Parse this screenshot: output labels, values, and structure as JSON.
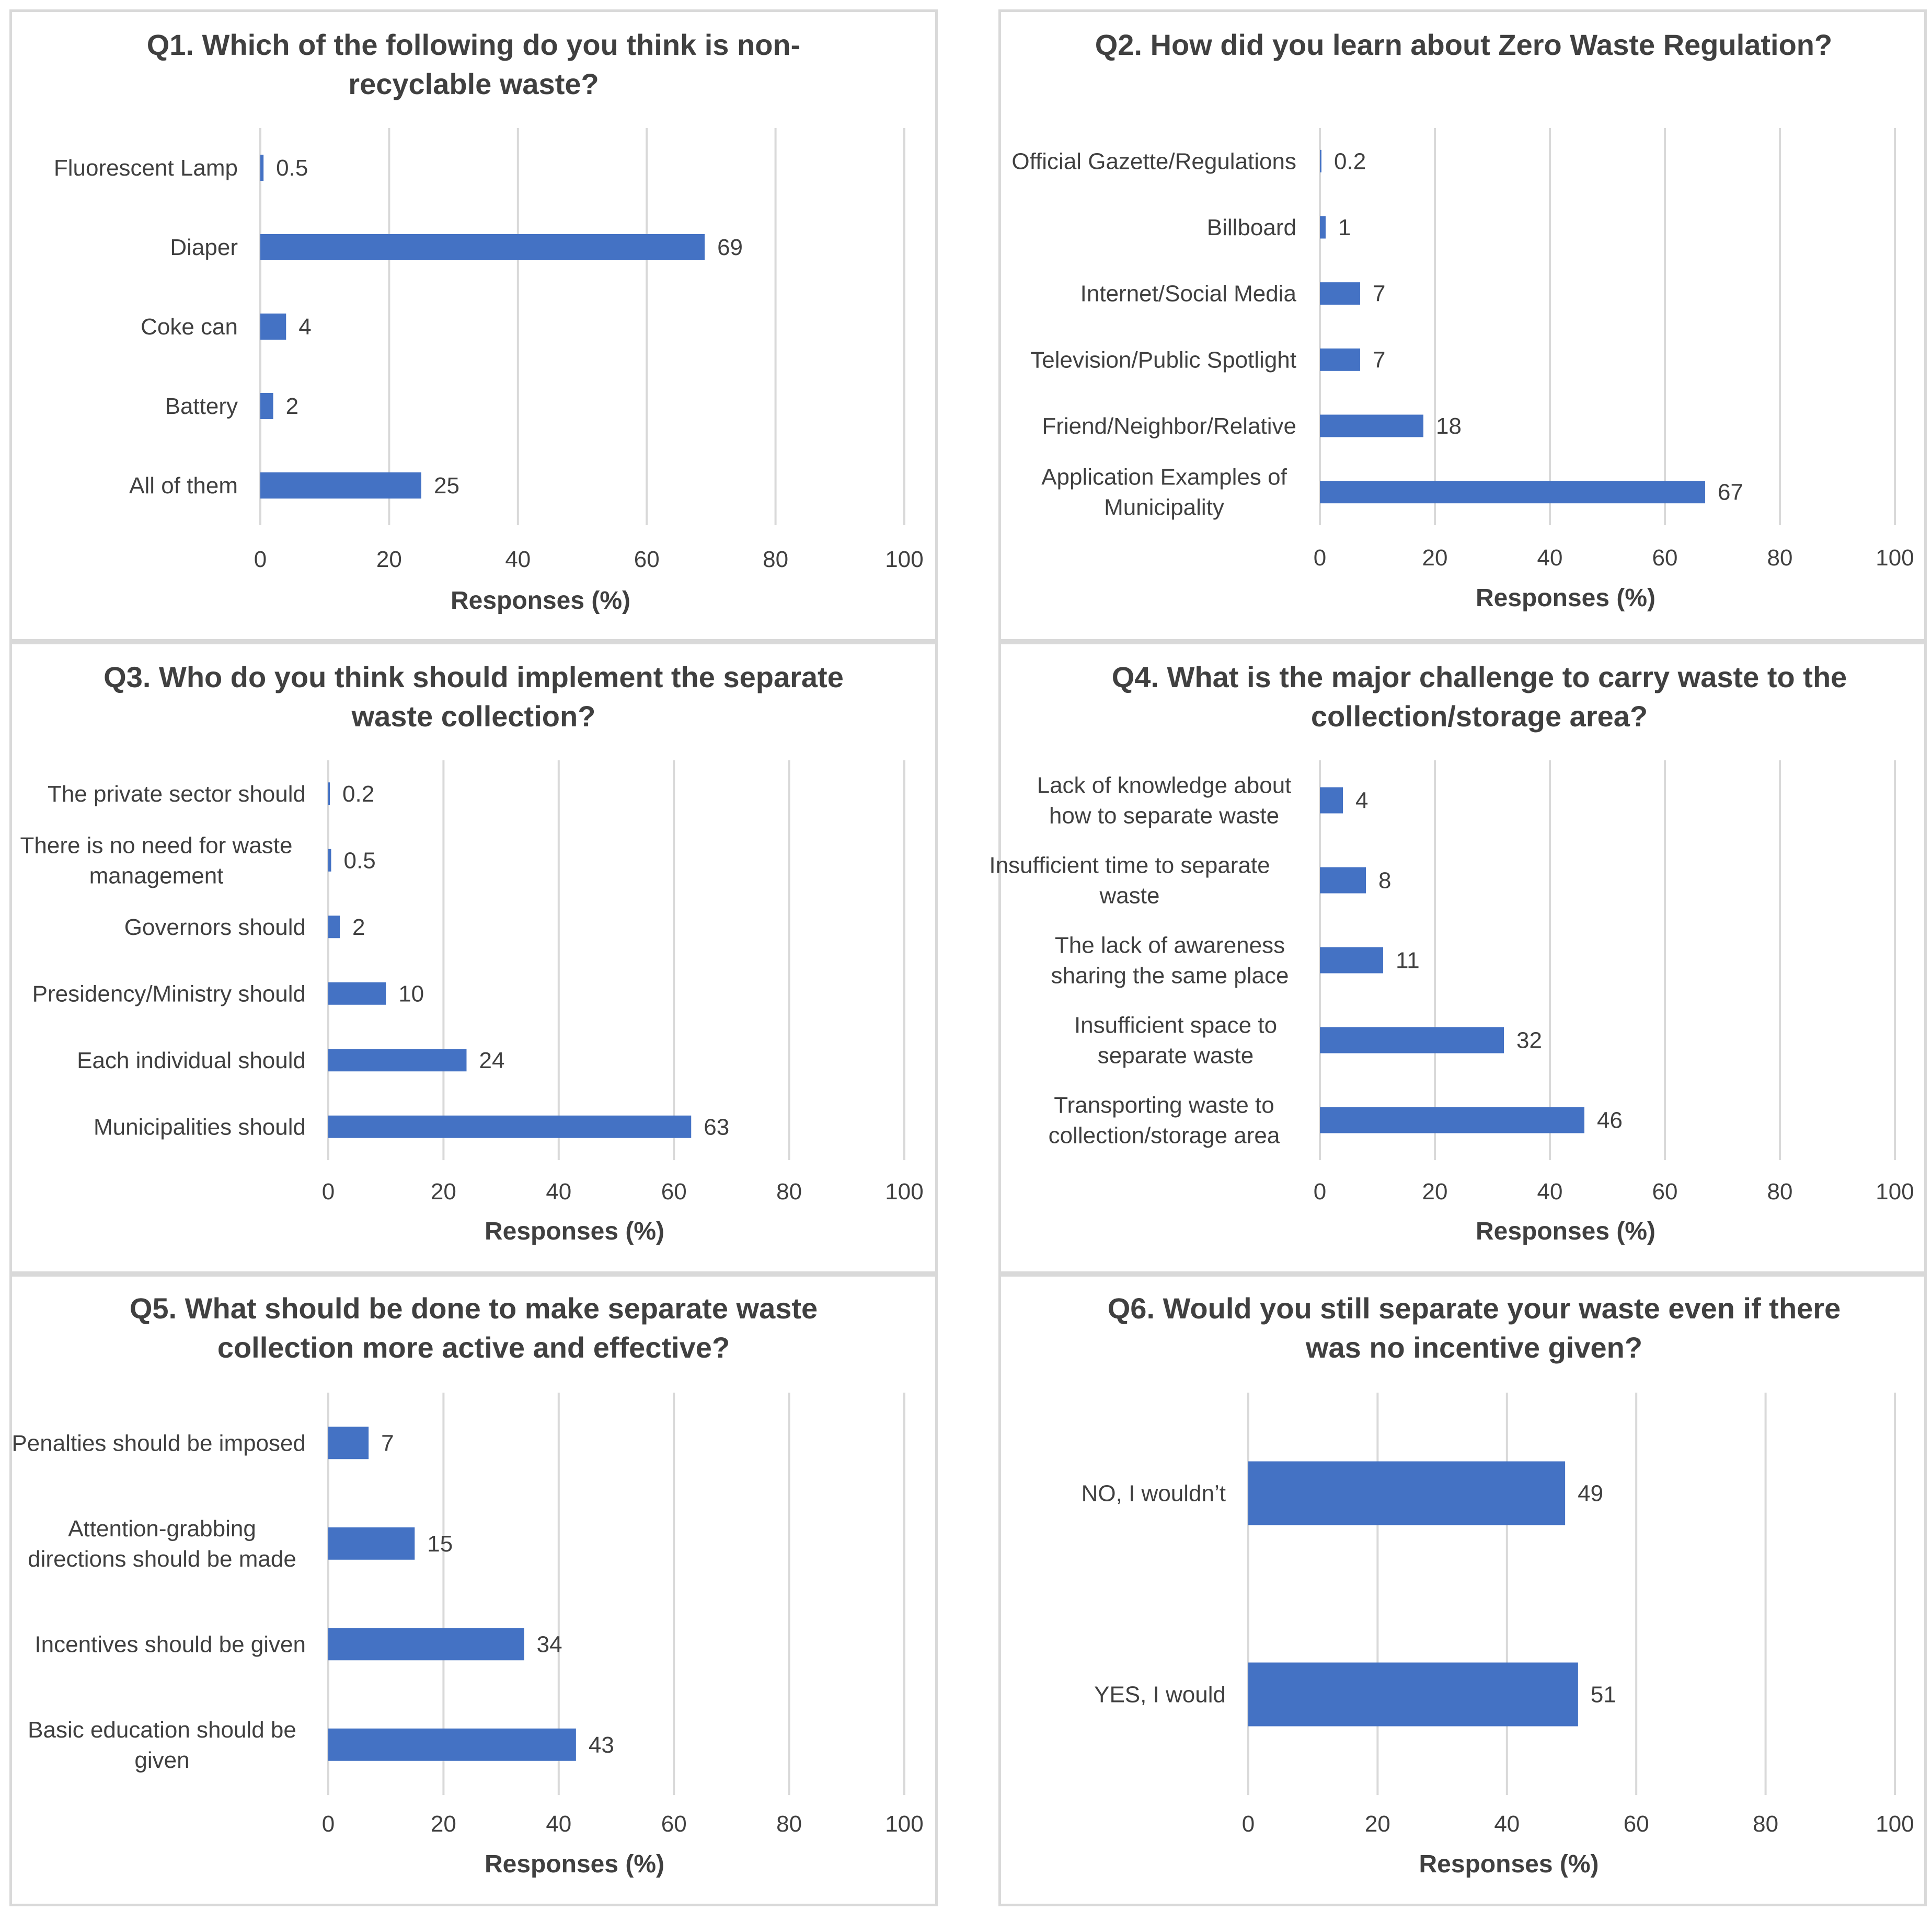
{
  "bar_color": "#4472c4",
  "chart_data": [
    {
      "type": "bar",
      "title": [
        "Q1. Which of the following do you think is non-",
        "recyclable waste?"
      ],
      "categories": [
        [
          "Fluorescent Lamp"
        ],
        [
          "Diaper"
        ],
        [
          "Coke can"
        ],
        [
          "Battery"
        ],
        [
          "All of them"
        ]
      ],
      "values": [
        0.5,
        69,
        4,
        2,
        25
      ],
      "value_labels": [
        "0.5",
        "69",
        "4",
        "2",
        "25"
      ],
      "xlabel": "Responses (%)",
      "xlim": [
        0,
        100
      ],
      "xticks": [
        "0",
        "20",
        "40",
        "60",
        "80",
        "100"
      ]
    },
    {
      "type": "bar",
      "title": [
        "Q2. How did you learn about Zero Waste Regulation?"
      ],
      "categories": [
        [
          "Official Gazette/Regulations"
        ],
        [
          "Billboard"
        ],
        [
          "Internet/Social Media"
        ],
        [
          "Television/Public Spotlight"
        ],
        [
          "Friend/Neighbor/Relative"
        ],
        [
          "Application Examples of",
          "Municipality"
        ]
      ],
      "values": [
        0.2,
        1,
        7,
        7,
        18,
        67
      ],
      "value_labels": [
        "0.2",
        "1",
        "7",
        "7",
        "18",
        "67"
      ],
      "xlabel": "Responses (%)",
      "xlim": [
        0,
        100
      ],
      "xticks": [
        "0",
        "20",
        "40",
        "60",
        "80",
        "100"
      ]
    },
    {
      "type": "bar",
      "title": [
        "Q3. Who do you think should implement the separate",
        "waste collection?"
      ],
      "categories": [
        [
          "The private sector should"
        ],
        [
          "There is no need for waste",
          "management"
        ],
        [
          "Governors should"
        ],
        [
          "Presidency/Ministry should"
        ],
        [
          "Each individual should"
        ],
        [
          "Municipalities should"
        ]
      ],
      "values": [
        0.2,
        0.5,
        2,
        10,
        24,
        63
      ],
      "value_labels": [
        "0.2",
        "0.5",
        "2",
        "10",
        "24",
        "63"
      ],
      "xlabel": "Responses (%)",
      "xlim": [
        0,
        100
      ],
      "xticks": [
        "0",
        "20",
        "40",
        "60",
        "80",
        "100"
      ]
    },
    {
      "type": "bar",
      "title": [
        "Q4. What is the major challenge to carry waste to the",
        "collection/storage area?"
      ],
      "categories": [
        [
          "Lack of knowledge about",
          "how to separate waste"
        ],
        [
          "Insufficient time to separate",
          "waste"
        ],
        [
          "The lack of awareness",
          "sharing the same place"
        ],
        [
          "Insufficient space to",
          "separate waste"
        ],
        [
          "Transporting waste to",
          "collection/storage area"
        ]
      ],
      "values": [
        4,
        8,
        11,
        32,
        46
      ],
      "value_labels": [
        "4",
        "8",
        "11",
        "32",
        "46"
      ],
      "xlabel": "Responses (%)",
      "xlim": [
        0,
        100
      ],
      "xticks": [
        "0",
        "20",
        "40",
        "60",
        "80",
        "100"
      ]
    },
    {
      "type": "bar",
      "title": [
        "Q5. What should be done to make separate waste",
        "collection more active and effective?"
      ],
      "categories": [
        [
          "Penalties should be imposed"
        ],
        [
          "Attention-grabbing",
          "directions should be made"
        ],
        [
          "Incentives should be given"
        ],
        [
          "Basic education should be",
          "given"
        ]
      ],
      "values": [
        7,
        15,
        34,
        43
      ],
      "value_labels": [
        "7",
        "15",
        "34",
        "43"
      ],
      "xlabel": "Responses (%)",
      "xlim": [
        0,
        100
      ],
      "xticks": [
        "0",
        "20",
        "40",
        "60",
        "80",
        "100"
      ]
    },
    {
      "type": "bar",
      "title": [
        "Q6. Would you still separate your waste even if there",
        "was no incentive given?"
      ],
      "categories": [
        [
          "NO, I wouldn’t"
        ],
        [
          "YES, I would"
        ]
      ],
      "values": [
        49,
        51
      ],
      "value_labels": [
        "49",
        "51"
      ],
      "xlabel": "Responses (%)",
      "xlim": [
        0,
        100
      ],
      "xticks": [
        "0",
        "20",
        "40",
        "60",
        "80",
        "100"
      ]
    }
  ]
}
